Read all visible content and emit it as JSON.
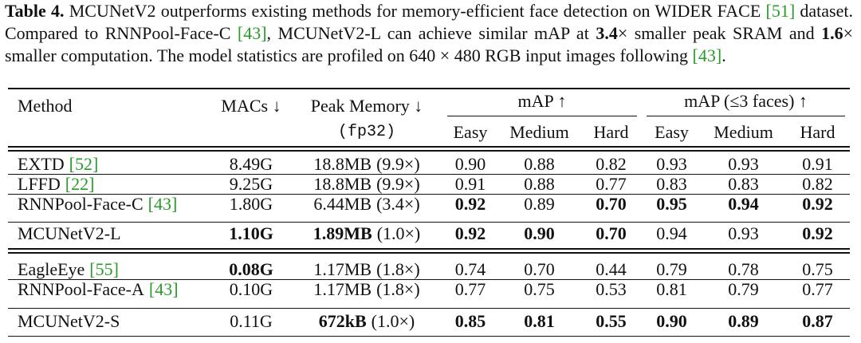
{
  "caption": [
    "Table 4.",
    " MCUNetV2 outperforms existing methods for memory-efficient face detection on WIDER FACE ",
    "[51]",
    " dataset. Compared to RNNPool-Face-C ",
    "[43]",
    ", MCUNetV2-L can achieve similar mAP at ",
    "3.4",
    "× smaller peak SRAM and ",
    "1.6",
    "× smaller computation. The model statistics are profiled on 640 × 480 RGB input images following ",
    "[43]",
    "."
  ],
  "header": {
    "method": "Method",
    "macs": "MACs ↓",
    "peak_memory": "Peak Memory ↓",
    "peak_memory_unit": "(fp32)",
    "map": "mAP ↑",
    "map_3faces": "mAP (≤3 faces) ↑",
    "subcolumns": [
      "Easy",
      "Medium",
      "Hard"
    ]
  },
  "groups": [
    [
      {
        "method": "EXTD",
        "ref": "[52]",
        "macs": "8.49G",
        "memory": "18.8MB",
        "ratio": "(9.9×)",
        "values": [
          "0.90",
          "0.88",
          "0.82",
          "0.93",
          "0.93",
          "0.91"
        ]
      },
      {
        "method": "LFFD",
        "ref": "[22]",
        "macs": "9.25G",
        "memory": "18.8MB",
        "ratio": "(9.9×)",
        "values": [
          "0.91",
          "0.88",
          "0.77",
          "0.83",
          "0.83",
          "0.82"
        ]
      },
      {
        "method": "RNNPool-Face-C",
        "ref": "[43]",
        "macs": "1.80G",
        "memory": "6.44MB",
        "ratio": "(3.4×)",
        "values": [
          "0.92",
          "0.89",
          "0.70",
          "0.95",
          "0.94",
          "0.92"
        ]
      }
    ],
    [
      {
        "method": "MCUNetV2-L",
        "macs": "1.10G",
        "memory": "1.89MB",
        "ratio": "(1.0×)",
        "values": [
          "0.92",
          "0.90",
          "0.70",
          "0.94",
          "0.93",
          "0.92"
        ]
      }
    ],
    [
      {
        "method": "EagleEye",
        "ref": "[55]",
        "macs": "0.08G",
        "memory": "1.17MB",
        "ratio": "(1.8×)",
        "values": [
          "0.74",
          "0.70",
          "0.44",
          "0.79",
          "0.78",
          "0.75"
        ]
      },
      {
        "method": "RNNPool-Face-A",
        "ref": "[43]",
        "macs": "0.10G",
        "memory": "1.17MB",
        "ratio": "(1.8×)",
        "values": [
          "0.77",
          "0.75",
          "0.53",
          "0.81",
          "0.79",
          "0.77"
        ]
      }
    ],
    [
      {
        "method": "MCUNetV2-S",
        "macs": "0.11G",
        "memory": "672kB",
        "ratio": "(1.0×)",
        "values": [
          "0.85",
          "0.81",
          "0.55",
          "0.90",
          "0.89",
          "0.87"
        ]
      }
    ]
  ]
}
